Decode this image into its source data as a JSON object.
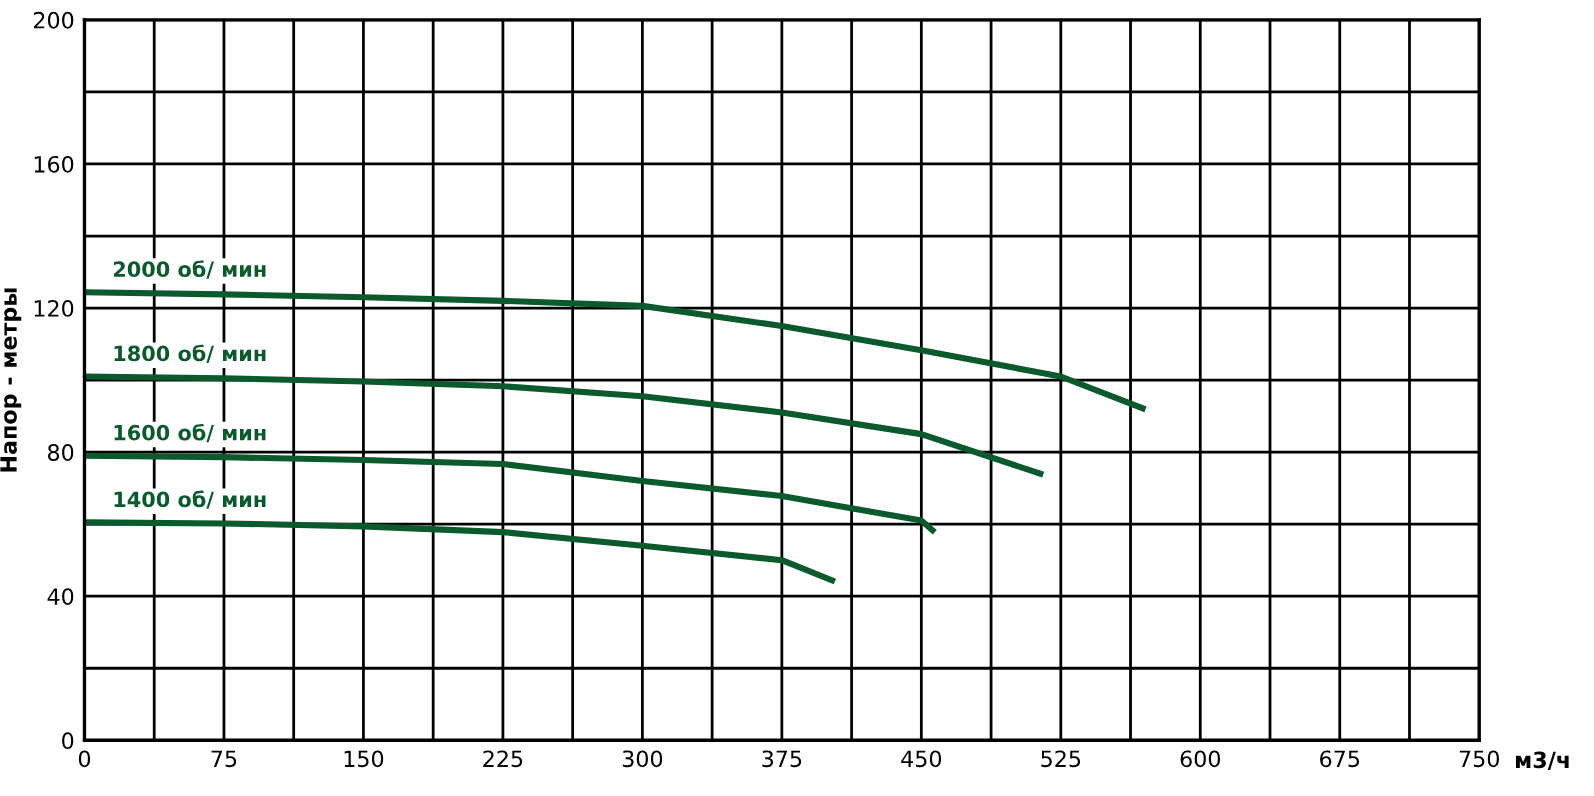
{
  "chart_data": {
    "type": "line",
    "xlabel": "м3/ч",
    "ylabel": "Напор - метры",
    "xlim": [
      0,
      750
    ],
    "ylim": [
      0,
      200
    ],
    "xticks": [
      0,
      {
        "value": 37.5,
        "label": null
      },
      75,
      {
        "value": 112.5,
        "label": null
      },
      150,
      {
        "value": 187.5,
        "label": null
      },
      225,
      {
        "value": 262.5,
        "label": null
      },
      300,
      {
        "value": 337.5,
        "label": null
      },
      375,
      {
        "value": 412.5,
        "label": null
      },
      450,
      {
        "value": 487.5,
        "label": null
      },
      525,
      {
        "value": 562.5,
        "label": null
      },
      600,
      {
        "value": 637.5,
        "label": null
      },
      675,
      {
        "value": 712.5,
        "label": null
      },
      750
    ],
    "yticks": [
      0,
      {
        "value": 20,
        "label": null
      },
      40,
      {
        "value": 60,
        "label": null
      },
      80,
      {
        "value": 100,
        "label": null
      },
      120,
      {
        "value": 140,
        "label": null
      },
      160,
      {
        "value": 180,
        "label": null
      },
      200
    ],
    "grid": true,
    "legend": false,
    "marker": "none",
    "line_style": "solid",
    "series": [
      {
        "name": "2000 об/ мин",
        "color": "#0b5a2e",
        "x": [
          0,
          75,
          150,
          225,
          300,
          375,
          450,
          525,
          569
        ],
        "values": [
          124.4,
          123.8,
          123,
          122,
          120.6,
          115,
          108.3,
          101,
          92.2
        ]
      },
      {
        "name": "1800 об/ мин",
        "color": "#0b5a2e",
        "x": [
          0,
          75,
          150,
          225,
          300,
          375,
          450,
          514
        ],
        "values": [
          101,
          100.5,
          99.6,
          98.3,
          95.5,
          91,
          85,
          74
        ]
      },
      {
        "name": "1600 об/ мин",
        "color": "#0b5a2e",
        "x": [
          0,
          75,
          150,
          225,
          300,
          375,
          450,
          456
        ],
        "values": [
          79,
          78.6,
          77.8,
          76.7,
          72,
          67.8,
          61,
          58.3
        ]
      },
      {
        "name": "1400 об/ мин",
        "color": "#0b5a2e",
        "x": [
          0,
          75,
          150,
          225,
          300,
          375,
          402
        ],
        "values": [
          60.5,
          60.2,
          59.4,
          57.8,
          54,
          50,
          44.4
        ]
      }
    ]
  }
}
